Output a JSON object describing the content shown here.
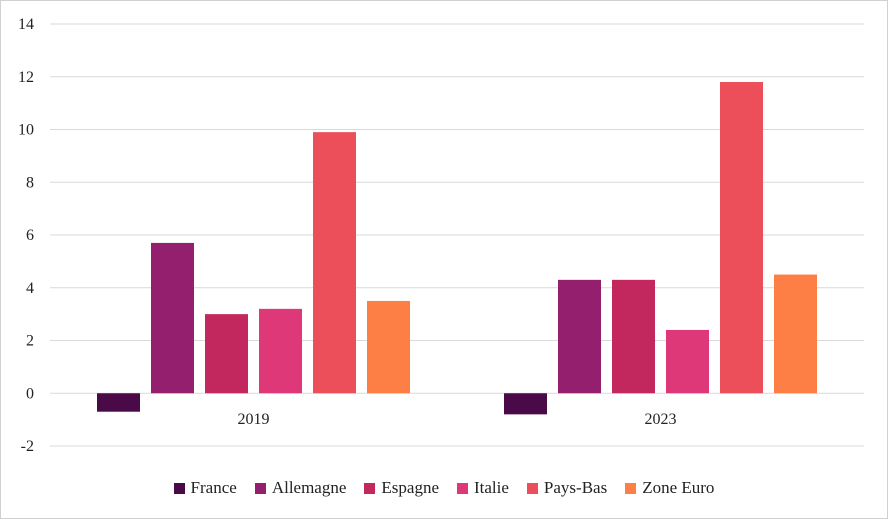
{
  "chart_data": {
    "type": "bar",
    "categories": [
      "2019",
      "2023"
    ],
    "series": [
      {
        "name": "France",
        "color": "#4a0a47",
        "values": [
          -0.7,
          -0.8
        ]
      },
      {
        "name": "Allemagne",
        "color": "#931f6e",
        "values": [
          5.7,
          4.3
        ]
      },
      {
        "name": "Espagne",
        "color": "#c2275d",
        "values": [
          3.0,
          4.3
        ]
      },
      {
        "name": "Italie",
        "color": "#de3878",
        "values": [
          3.2,
          2.4
        ]
      },
      {
        "name": "Pays-Bas",
        "color": "#ec4f59",
        "values": [
          9.9,
          11.8
        ]
      },
      {
        "name": "Zone Euro",
        "color": "#fd7f45",
        "values": [
          3.5,
          4.5
        ]
      }
    ],
    "ylim": [
      -2,
      14
    ],
    "yticks": [
      "-2",
      "0",
      "2",
      "4",
      "6",
      "8",
      "10",
      "12",
      "14"
    ],
    "grid": true,
    "legend_position": "bottom"
  }
}
